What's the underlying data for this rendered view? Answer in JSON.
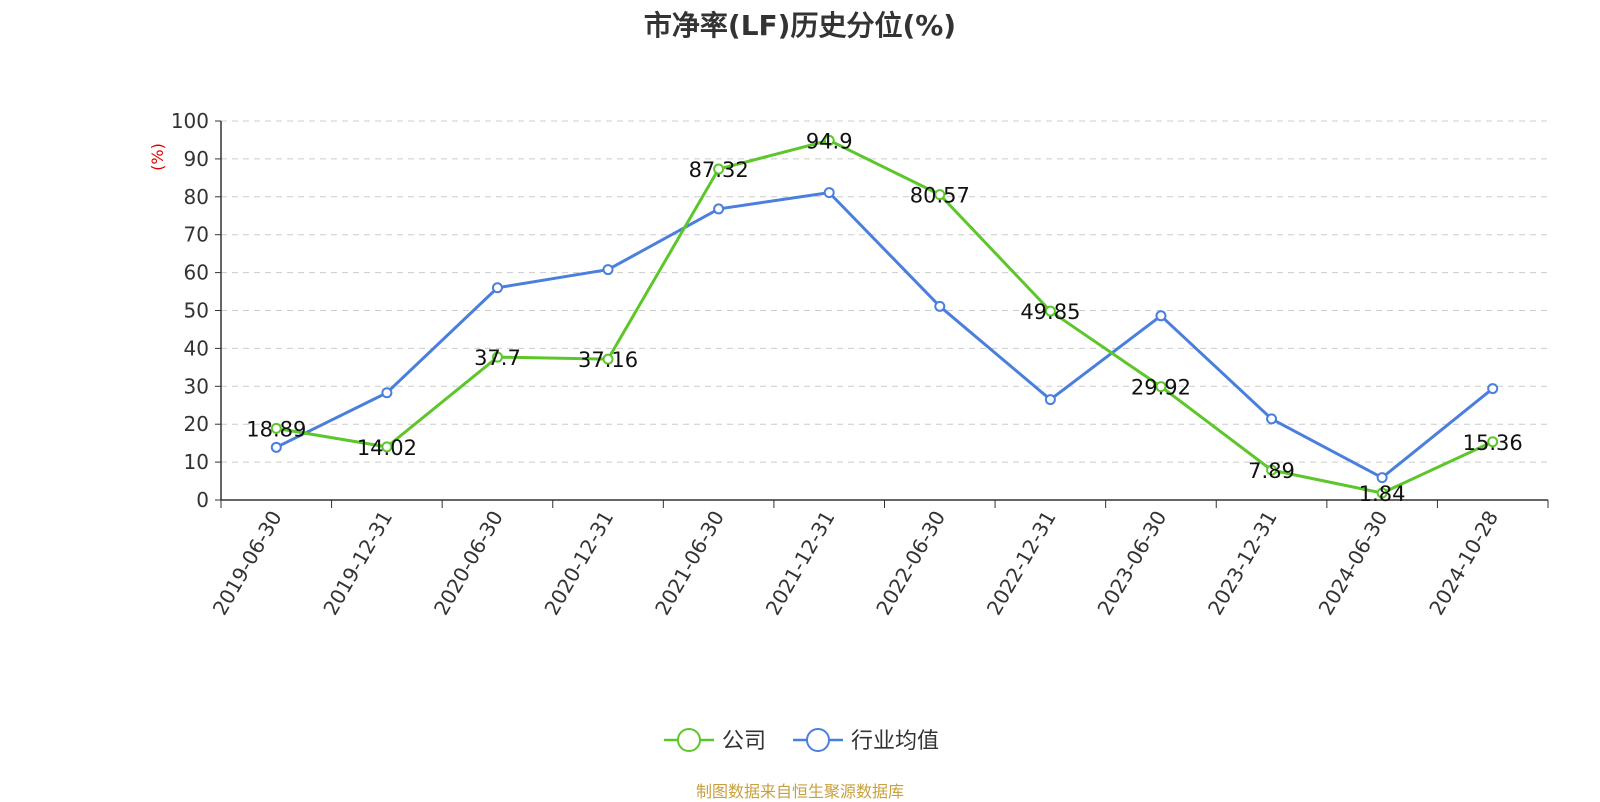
{
  "chart_data": {
    "type": "line",
    "title": "市净率(LF)历史分位(%)",
    "ylabel": "(%)",
    "xlabel": "",
    "categories": [
      "2019-06-30",
      "2019-12-31",
      "2020-06-30",
      "2020-12-31",
      "2021-06-30",
      "2021-12-31",
      "2022-06-30",
      "2022-12-31",
      "2023-06-30",
      "2023-12-31",
      "2024-06-30",
      "2024-10-28"
    ],
    "ylim": [
      0,
      100
    ],
    "yticks": [
      0,
      10,
      20,
      30,
      40,
      50,
      60,
      70,
      80,
      90,
      100
    ],
    "grid": true,
    "legend_position": "bottom",
    "series": [
      {
        "name": "公司",
        "color": "#5cc62a",
        "values": [
          18.89,
          14.02,
          37.7,
          37.16,
          87.32,
          94.9,
          80.57,
          49.85,
          29.92,
          7.89,
          1.84,
          15.36
        ],
        "labels": [
          "18.89",
          "14.02",
          "37.7",
          "37.16",
          "87.32",
          "94.9",
          "80.57",
          "49.85",
          "29.92",
          "7.89",
          "1.84",
          "15.36"
        ]
      },
      {
        "name": "行业均值",
        "color": "#4a7fdc",
        "values": [
          13.9,
          28.3,
          56.0,
          60.8,
          76.8,
          81.1,
          51.1,
          26.5,
          48.6,
          21.4,
          5.9,
          29.4
        ]
      }
    ]
  },
  "source_note": "制图数据来自恒生聚源数据库"
}
